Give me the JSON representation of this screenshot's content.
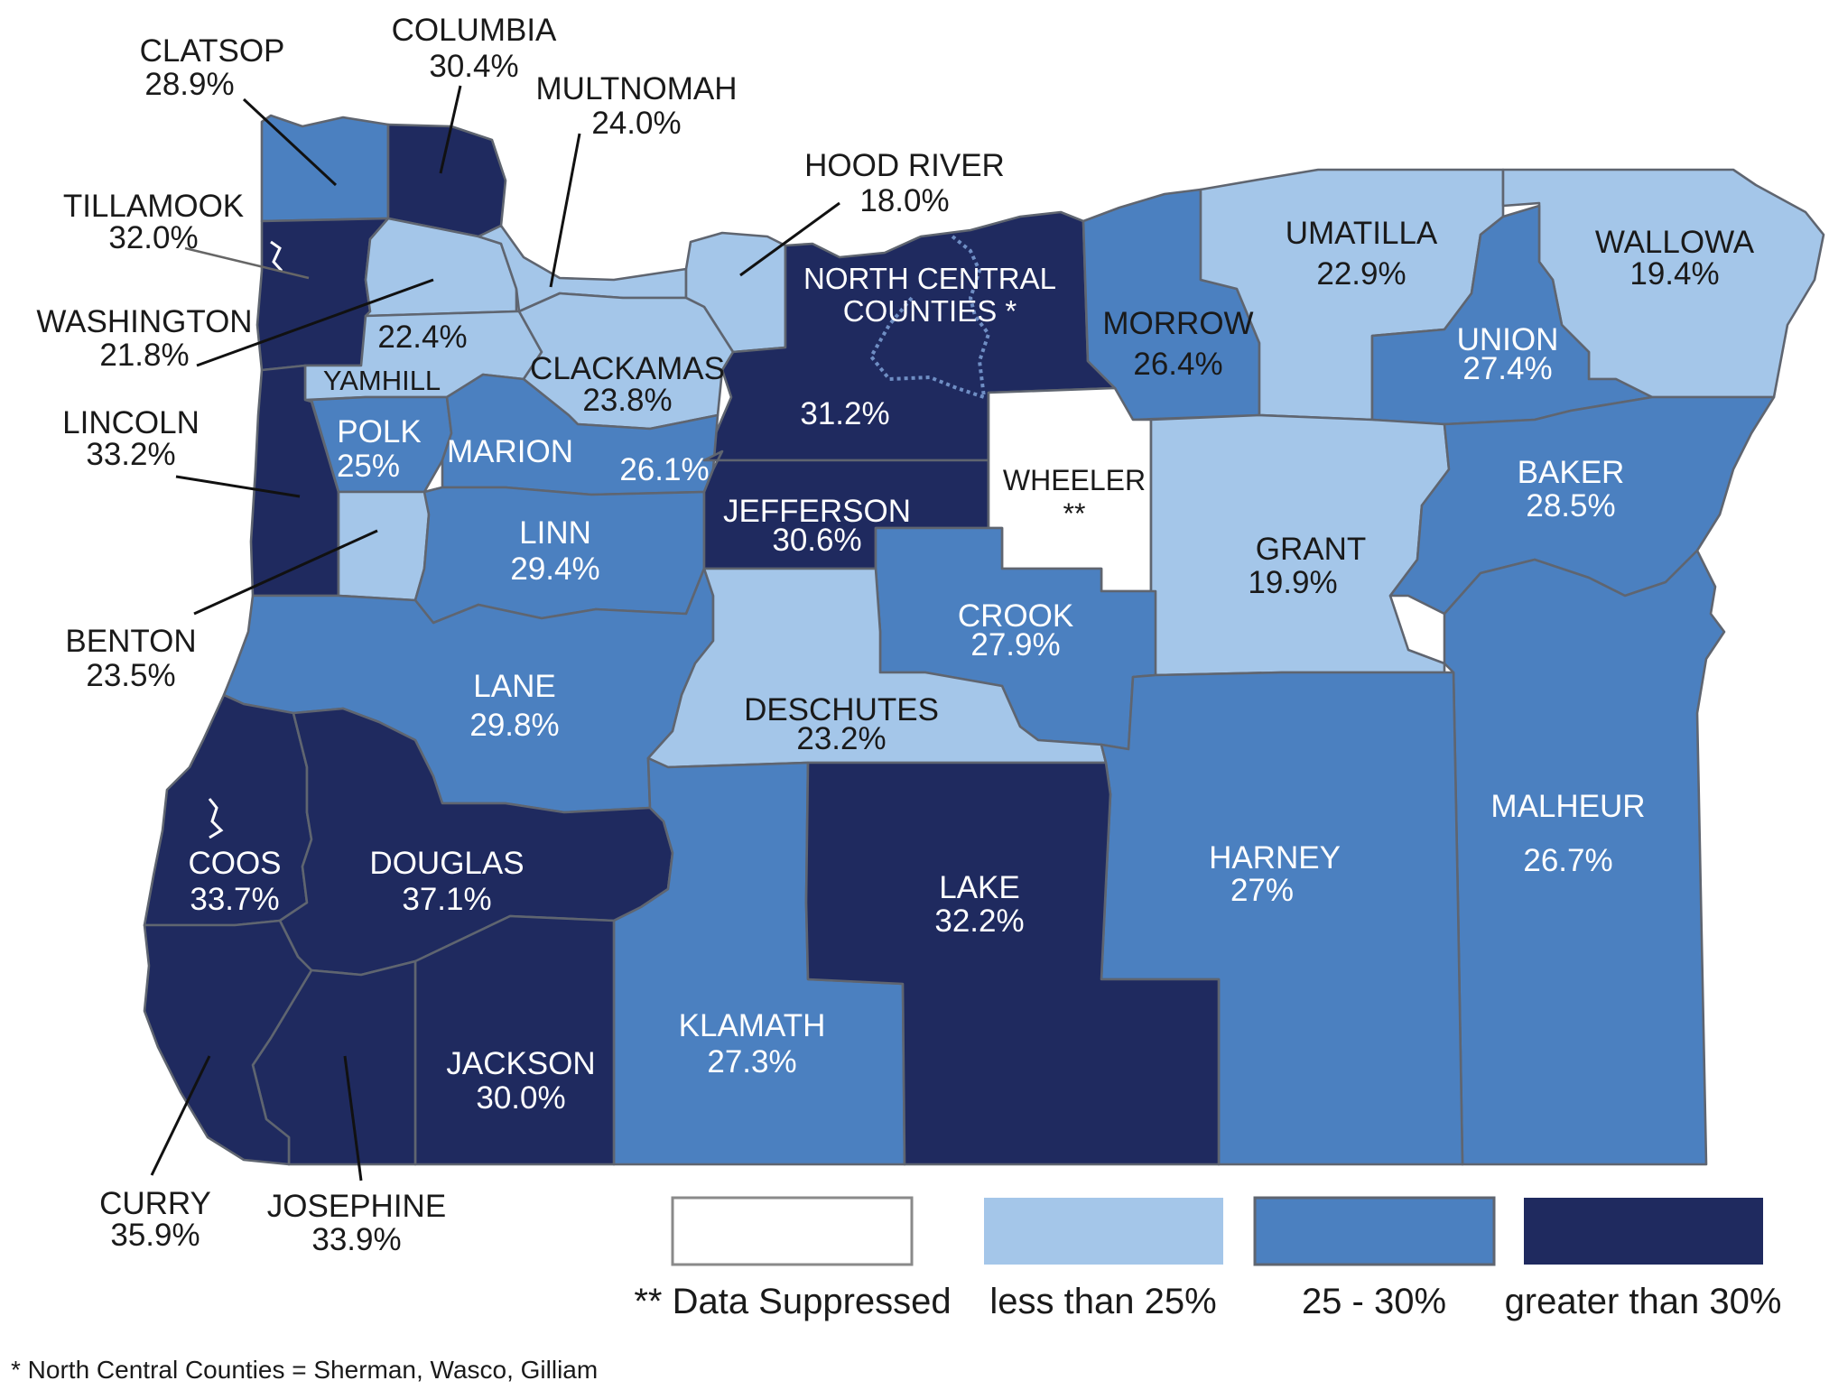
{
  "colors": {
    "suppressed": "#ffffff",
    "low": "#a4c6e9",
    "mid": "#4b80c0",
    "high": "#1f2a5f",
    "border": "#5f6570"
  },
  "counties": {
    "clatsop": {
      "name": "CLATSOP",
      "value": "28.9%"
    },
    "columbia": {
      "name": "COLUMBIA",
      "value": "30.4%"
    },
    "multnomah": {
      "name": "MULTNOMAH",
      "value": "24.0%"
    },
    "hood_river": {
      "name": "HOOD RIVER",
      "value": "18.0%"
    },
    "tillamook": {
      "name": "TILLAMOOK",
      "value": "32.0%"
    },
    "washington": {
      "name": "WASHINGTON",
      "value": "21.8%"
    },
    "yamhill": {
      "name": "YAMHILL",
      "value": "22.4%"
    },
    "clackamas": {
      "name": "CLACKAMAS",
      "value": "23.8%"
    },
    "north_central": {
      "name_line1": "NORTH CENTRAL",
      "name_line2": "COUNTIES *",
      "value": "31.2%"
    },
    "morrow": {
      "name": "MORROW",
      "value": "26.4%"
    },
    "umatilla": {
      "name": "UMATILLA",
      "value": "22.9%"
    },
    "union": {
      "name": "UNION",
      "value": "27.4%"
    },
    "wallowa": {
      "name": "WALLOWA",
      "value": "19.4%"
    },
    "lincoln": {
      "name": "LINCOLN",
      "value": "33.2%"
    },
    "polk": {
      "name": "POLK",
      "value": "25%"
    },
    "marion": {
      "name": "MARION",
      "value": "26.1%"
    },
    "wheeler": {
      "name": "WHEELER",
      "value": "**"
    },
    "baker": {
      "name": "BAKER",
      "value": "28.5%"
    },
    "jefferson": {
      "name": "JEFFERSON",
      "value": "30.6%"
    },
    "linn": {
      "name": "LINN",
      "value": "29.4%"
    },
    "grant": {
      "name": "GRANT",
      "value": "19.9%"
    },
    "benton": {
      "name": "BENTON",
      "value": "23.5%"
    },
    "crook": {
      "name": "CROOK",
      "value": "27.9%"
    },
    "lane": {
      "name": "LANE",
      "value": "29.8%"
    },
    "deschutes": {
      "name": "DESCHUTES",
      "value": "23.2%"
    },
    "malheur": {
      "name": "MALHEUR",
      "value": "26.7%"
    },
    "harney": {
      "name": "HARNEY",
      "value": "27%"
    },
    "coos": {
      "name": "COOS",
      "value": "33.7%"
    },
    "douglas": {
      "name": "DOUGLAS",
      "value": "37.1%"
    },
    "lake": {
      "name": "LAKE",
      "value": "32.2%"
    },
    "klamath": {
      "name": "KLAMATH",
      "value": "27.3%"
    },
    "jackson": {
      "name": "JACKSON",
      "value": "30.0%"
    },
    "curry": {
      "name": "CURRY",
      "value": "35.9%"
    },
    "josephine": {
      "name": "JOSEPHINE",
      "value": "33.9%"
    }
  },
  "legend": {
    "suppressed": "** Data Suppressed",
    "low": "less than 25%",
    "mid": "25 - 30%",
    "high": "greater than 30%"
  },
  "footnote": "* North Central Counties = Sherman, Wasco, Gilliam"
}
